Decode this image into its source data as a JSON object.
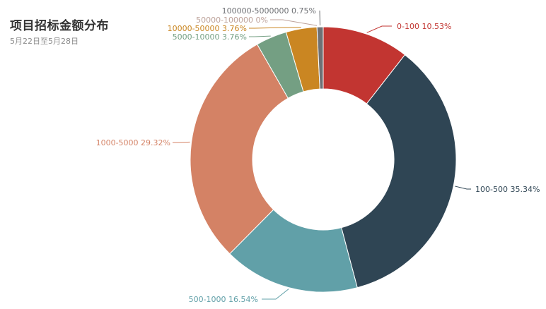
{
  "chart_data": {
    "type": "pie",
    "title": "项目招标金额分布",
    "subtitle": "5月22日至5月28日",
    "slices": [
      {
        "name": "0-100",
        "percent": 10.53,
        "label": "0-100 10.53%",
        "color": "#c23531"
      },
      {
        "name": "100-500",
        "percent": 35.34,
        "label": "100-500 35.34%",
        "color": "#2f4554"
      },
      {
        "name": "500-1000",
        "percent": 16.54,
        "label": "500-1000 16.54%",
        "color": "#61a0a8"
      },
      {
        "name": "1000-5000",
        "percent": 29.32,
        "label": "1000-5000 29.32%",
        "color": "#d48265"
      },
      {
        "name": "5000-10000",
        "percent": 3.76,
        "label": "5000-10000 3.76%",
        "color": "#749f83"
      },
      {
        "name": "10000-50000",
        "percent": 3.76,
        "label": "10000-50000 3.76%",
        "color": "#ca8622"
      },
      {
        "name": "50000-100000",
        "percent": 0,
        "label": "50000-100000 0%",
        "color": "#bda29a"
      },
      {
        "name": "100000-5000000",
        "percent": 0.75,
        "label": "100000-5000000 0.75%",
        "color": "#6e7074"
      }
    ]
  }
}
